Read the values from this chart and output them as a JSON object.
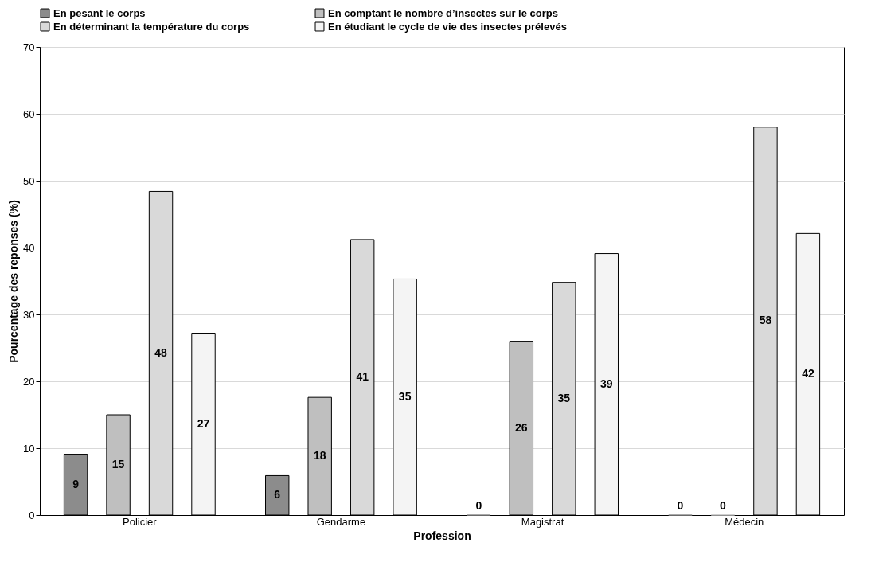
{
  "chart_data": {
    "type": "bar",
    "xlabel": "Profession",
    "ylabel": "Pourcentage des reponses (%)",
    "categories": [
      "Policier",
      "Gendarme",
      "Magistrat",
      "Médecin"
    ],
    "series": [
      {
        "name": "En pesant le corps",
        "color": "#8c8c8c",
        "values": [
          9.1,
          5.9,
          0,
          0
        ],
        "value_labels": [
          "9",
          "6",
          "0",
          "0"
        ]
      },
      {
        "name": "En comptant le nombre d’insectes sur le corps",
        "color": "#bfbfbf",
        "values": [
          15,
          17.6,
          26,
          0
        ],
        "value_labels": [
          "15",
          "18",
          "26",
          "0"
        ]
      },
      {
        "name": "En déterminant la température du corps",
        "color": "#d9d9d9",
        "values": [
          48.4,
          41.2,
          34.8,
          58
        ],
        "value_labels": [
          "48",
          "41",
          "35",
          "58"
        ]
      },
      {
        "name": "En étudiant le cycle de vie des insectes prélevés",
        "color": "#f4f4f4",
        "values": [
          27.2,
          35.3,
          39.1,
          42.1
        ],
        "value_labels": [
          "27",
          "35",
          "39",
          "42"
        ]
      }
    ],
    "ylim": [
      0,
      70
    ],
    "yticks": [
      0,
      10,
      20,
      30,
      40,
      50,
      60,
      70
    ],
    "grid": "y",
    "legend": "top"
  }
}
